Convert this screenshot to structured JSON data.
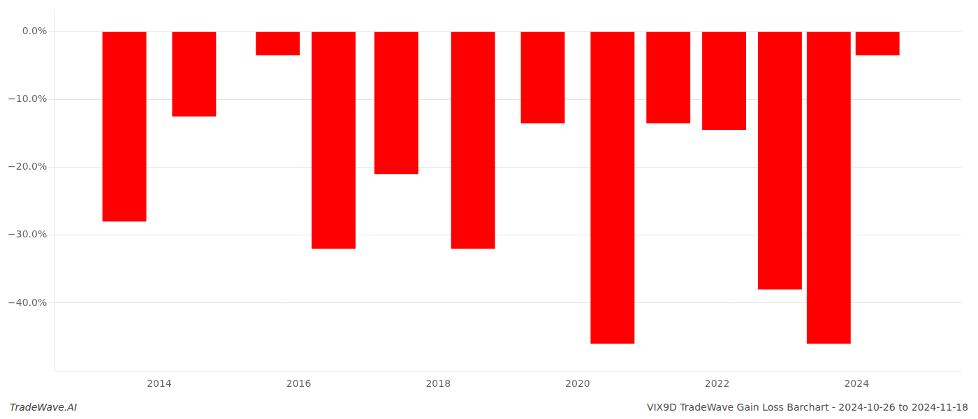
{
  "chart_data": {
    "type": "bar",
    "x": [
      2013.5,
      2014.5,
      2015.7,
      2016.5,
      2017.4,
      2018.5,
      2019.5,
      2020.5,
      2021.3,
      2022.1,
      2022.9,
      2023.6,
      2024.3
    ],
    "values": [
      -28.0,
      -12.5,
      -3.5,
      -32.0,
      -21.0,
      -32.0,
      -13.5,
      -46.0,
      -13.5,
      -14.5,
      -38.0,
      -46.0,
      -3.5
    ],
    "color": "#ff0000",
    "xlim": [
      2012.5,
      2025.5
    ],
    "xticks": [
      2014,
      2016,
      2018,
      2020,
      2022,
      2024
    ],
    "ylim": [
      -50,
      3
    ],
    "yticks": [
      {
        "value": 0,
        "label": "0.0%"
      },
      {
        "value": -10,
        "label": "−10.0%"
      },
      {
        "value": -20,
        "label": "−20.0%"
      },
      {
        "value": -30,
        "label": "−30.0%"
      },
      {
        "value": -40,
        "label": "−40.0%"
      }
    ],
    "grid": "y",
    "annotations": [
      "TradeWave.AI",
      "VIX9D TradeWave Gain Loss Barchart - 2024-10-26 to 2024-11-18"
    ]
  }
}
